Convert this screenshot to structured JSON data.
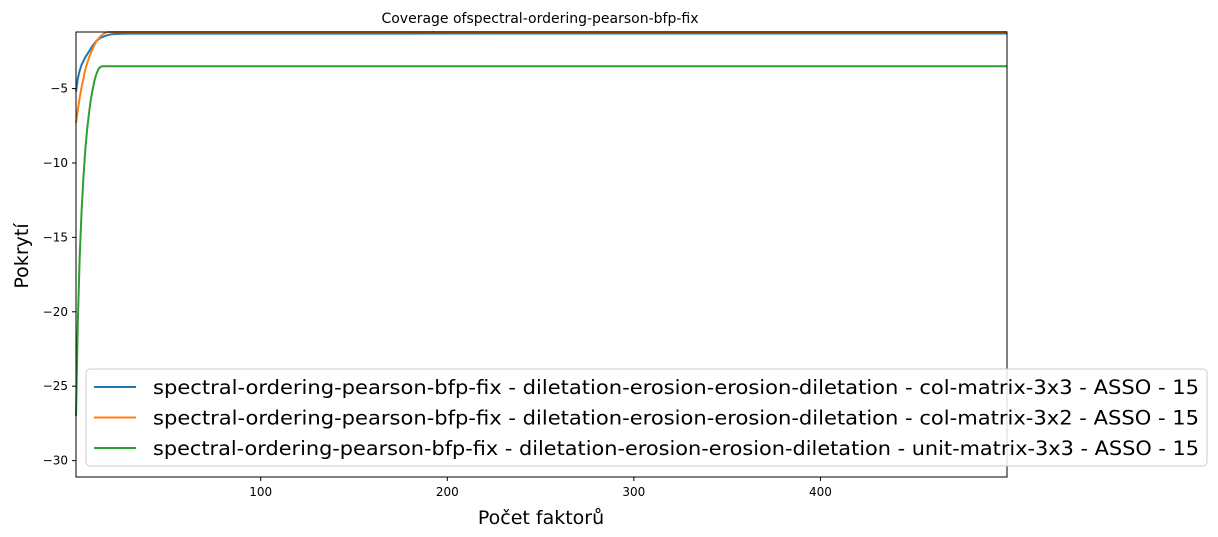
{
  "chart_data": {
    "type": "line",
    "title": "Coverage ofspectral-ordering-pearson-bfp-fix",
    "xlabel": "Počet faktorů",
    "ylabel": "Pokrytí",
    "xlim": [
      1,
      500
    ],
    "ylim": [
      -31.1,
      -1.2
    ],
    "x_ticks": [
      100,
      200,
      300,
      400
    ],
    "y_ticks": [
      -5,
      -10,
      -15,
      -20,
      -25,
      -30
    ],
    "x_tick_labels": [
      "100",
      "200",
      "300",
      "400"
    ],
    "y_tick_labels": [
      "−5",
      "−10",
      "−15",
      "−20",
      "−25",
      "−30"
    ],
    "legend_position": "lower-right",
    "grid": false,
    "series": [
      {
        "name": "spectral-ordering-pearson-bfp-fix - diletation-erosion-erosion-diletation - col-matrix-3x3 - ASSO - 15",
        "color": "#1f77b4",
        "points": [
          [
            1,
            -5.2
          ],
          [
            2,
            -4.3
          ],
          [
            3,
            -3.8
          ],
          [
            4,
            -3.4
          ],
          [
            6,
            -2.9
          ],
          [
            8,
            -2.5
          ],
          [
            10,
            -2.1
          ],
          [
            12,
            -1.8
          ],
          [
            14,
            -1.6
          ],
          [
            17,
            -1.45
          ],
          [
            20,
            -1.35
          ],
          [
            25,
            -1.32
          ],
          [
            30,
            -1.31
          ],
          [
            500,
            -1.3
          ]
        ]
      },
      {
        "name": "spectral-ordering-pearson-bfp-fix - diletation-erosion-erosion-diletation - col-matrix-3x2 - ASSO - 15",
        "color": "#ff7f0e",
        "points": [
          [
            1,
            -7.3
          ],
          [
            2,
            -6.4
          ],
          [
            3,
            -5.6
          ],
          [
            4,
            -4.9
          ],
          [
            5,
            -4.3
          ],
          [
            6,
            -3.7
          ],
          [
            8,
            -2.9
          ],
          [
            10,
            -2.3
          ],
          [
            12,
            -1.8
          ],
          [
            14,
            -1.5
          ],
          [
            16,
            -1.3
          ],
          [
            18,
            -1.2
          ],
          [
            20,
            -1.2
          ],
          [
            500,
            -1.2
          ]
        ]
      },
      {
        "name": "spectral-ordering-pearson-bfp-fix - diletation-erosion-erosion-diletation - unit-matrix-3x3 - ASSO - 15",
        "color": "#2ca02c",
        "points": [
          [
            1,
            -27.0
          ],
          [
            2,
            -20.5
          ],
          [
            3,
            -16.3
          ],
          [
            4,
            -13.2
          ],
          [
            5,
            -10.9
          ],
          [
            6,
            -9.1
          ],
          [
            7,
            -7.7
          ],
          [
            8,
            -6.6
          ],
          [
            9,
            -5.7
          ],
          [
            10,
            -5.0
          ],
          [
            11,
            -4.4
          ],
          [
            12,
            -4.0
          ],
          [
            13,
            -3.7
          ],
          [
            14,
            -3.55
          ],
          [
            15,
            -3.5
          ],
          [
            16,
            -3.5
          ],
          [
            500,
            -3.5
          ]
        ]
      }
    ]
  }
}
